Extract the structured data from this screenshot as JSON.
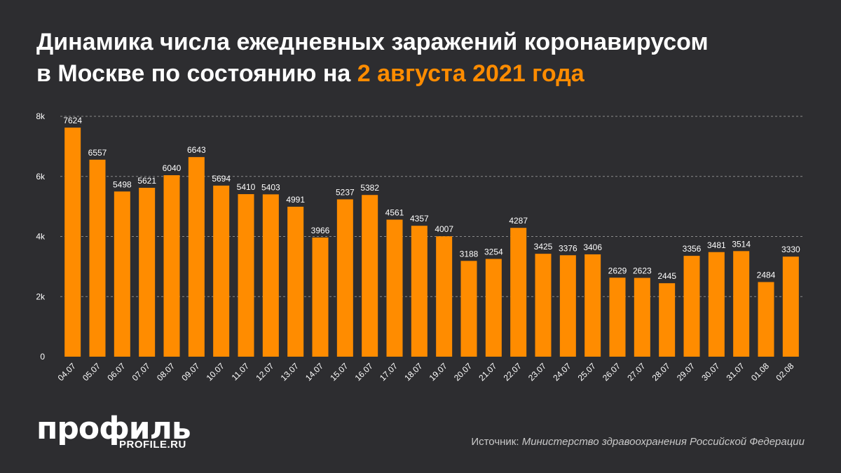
{
  "header": {
    "title_line1": "Динамика числа ежедневных заражений коронавирусом",
    "title_line2_prefix": "в Москве по состоянию на ",
    "title_line2_accent": "2 августа 2021 года"
  },
  "colors": {
    "background": "#2d2d30",
    "bar": "#ff8c00",
    "accent": "#ff8c00",
    "text": "#ffffff"
  },
  "chart_data": {
    "type": "bar",
    "categories": [
      "04.07",
      "05.07",
      "06.07",
      "07.07",
      "08.07",
      "09.07",
      "10.07",
      "11.07",
      "12.07",
      "13.07",
      "14.07",
      "15.07",
      "16.07",
      "17.07",
      "18.07",
      "19.07",
      "20.07",
      "21.07",
      "22.07",
      "23.07",
      "24.07",
      "25.07",
      "26.07",
      "27.07",
      "28.07",
      "29.07",
      "30.07",
      "31.07",
      "01.08",
      "02.08"
    ],
    "values": [
      7624,
      6557,
      5498,
      5621,
      6040,
      6643,
      5694,
      5410,
      5403,
      4991,
      3966,
      5237,
      5382,
      4561,
      4357,
      4007,
      3188,
      3254,
      4287,
      3425,
      3376,
      3406,
      2629,
      2623,
      2445,
      3356,
      3481,
      3514,
      2484,
      3330
    ],
    "yticks": [
      0,
      2000,
      4000,
      6000,
      8000
    ],
    "ytick_labels": [
      "0",
      "2k",
      "4k",
      "6k",
      "8k"
    ],
    "ylim": [
      0,
      8000
    ],
    "grid": true,
    "legend": "none"
  },
  "footer": {
    "logo_word": "профиль",
    "logo_site": "PROFILE.RU",
    "source_label": "Источник: ",
    "source_text": "Министерство здравоохранения Российской Федерации"
  }
}
